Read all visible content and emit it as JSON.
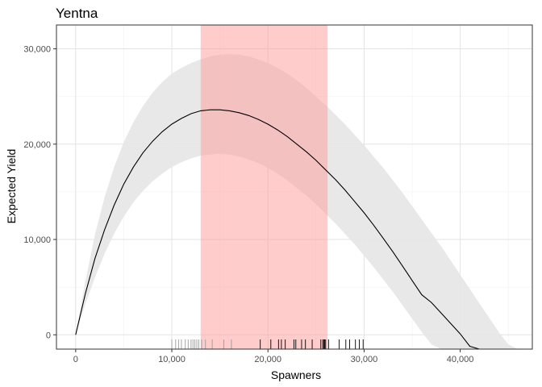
{
  "chart_data": {
    "type": "line",
    "title": "Yentna",
    "xlabel": "Spawners",
    "ylabel": "Expected Yield",
    "xlim": [
      -2000,
      47500
    ],
    "ylim": [
      -1500,
      32500
    ],
    "x_ticks": [
      0,
      10000,
      20000,
      30000,
      40000
    ],
    "x_tick_labels": [
      "0",
      "10,000",
      "20,000",
      "30,000",
      "40,000"
    ],
    "y_ticks": [
      0,
      10000,
      20000,
      30000
    ],
    "y_tick_labels": [
      "0",
      "10,000",
      "20,000",
      "30,000"
    ],
    "grid": true,
    "colors": {
      "line": "#000000",
      "band": "#e6e6e6",
      "goal_range": "#ff9a9a",
      "grid_major": "#e3e3e3",
      "grid_minor": "#f2f2f2",
      "rug_light": "#9a9a9a",
      "rug_dark": "#000000"
    },
    "series": [
      {
        "type": "line",
        "x": [
          0,
          1000,
          2000,
          3000,
          4000,
          5000,
          6000,
          7000,
          8000,
          9000,
          10000,
          11000,
          12000,
          13000,
          14000,
          15000,
          16000,
          17000,
          18000,
          19000,
          20000,
          21000,
          22000,
          23000,
          24000,
          25000,
          26000,
          27000,
          28000,
          29000,
          30000,
          31000,
          32000,
          33000,
          34000,
          35000,
          36000,
          37000,
          38000,
          39000,
          40000,
          41000,
          42000
        ],
        "y": [
          0,
          4300,
          8000,
          11000,
          13600,
          15800,
          17600,
          19100,
          20300,
          21300,
          22100,
          22700,
          23200,
          23500,
          23600,
          23600,
          23500,
          23300,
          23000,
          22600,
          22100,
          21500,
          20800,
          20000,
          19200,
          18300,
          17300,
          16300,
          15200,
          14000,
          12800,
          11500,
          10100,
          8700,
          7200,
          5700,
          4200,
          3400,
          2300,
          1200,
          100,
          -1200,
          -1500
        ]
      },
      {
        "type": "band",
        "x": [
          0,
          1000,
          2000,
          3000,
          4000,
          5000,
          6000,
          7000,
          8000,
          9000,
          10000,
          11000,
          12000,
          13000,
          14000,
          15000,
          16000,
          17000,
          18000,
          19000,
          20000,
          21000,
          22000,
          23000,
          24000,
          25000,
          26000,
          27000,
          28000,
          29000,
          30000,
          31000,
          32000,
          33000,
          34000,
          35000,
          36000,
          37000,
          38000,
          39000,
          40000,
          41000,
          42000,
          43000,
          44000,
          45000,
          46000,
          46800
        ],
        "upper": [
          0,
          5600,
          10500,
          14400,
          17600,
          20200,
          22300,
          24000,
          25400,
          26500,
          27400,
          28000,
          28500,
          28900,
          29200,
          29400,
          29450,
          29400,
          29200,
          28900,
          28500,
          28000,
          27400,
          26700,
          25900,
          25000,
          24100,
          23100,
          22100,
          21000,
          19900,
          18700,
          17500,
          16200,
          14900,
          13500,
          12100,
          10700,
          9300,
          7800,
          6300,
          4800,
          3300,
          1800,
          300,
          -1000,
          -1500,
          -1500
        ],
        "lower": [
          0,
          3200,
          6000,
          8500,
          10600,
          12400,
          13900,
          15100,
          16100,
          16900,
          17600,
          18100,
          18500,
          18800,
          18900,
          19000,
          18900,
          18700,
          18400,
          18000,
          17500,
          16900,
          16200,
          15400,
          14600,
          13700,
          12700,
          11700,
          10600,
          9500,
          8300,
          7100,
          5800,
          4500,
          3100,
          1700,
          300,
          -1000,
          -1500,
          -1500,
          -1500,
          -1500,
          -1500,
          -1500,
          -1500,
          -1500,
          -1500,
          -1500
        ]
      },
      {
        "type": "range",
        "xmin": 13000,
        "xmax": 26200
      },
      {
        "type": "rug",
        "light": [
          10000,
          10400,
          10700,
          11000,
          11400,
          11700,
          12000,
          12200,
          12400,
          12600,
          12800,
          13100,
          13500,
          14200,
          15400,
          16200
        ],
        "dark": [
          19200,
          20300,
          21100,
          21400,
          21800,
          22700,
          22900,
          23500,
          23900,
          24600,
          25500,
          25700,
          25800,
          25900,
          26000,
          26300,
          27400,
          28100,
          28500,
          29100,
          29500,
          29900
        ]
      }
    ]
  }
}
